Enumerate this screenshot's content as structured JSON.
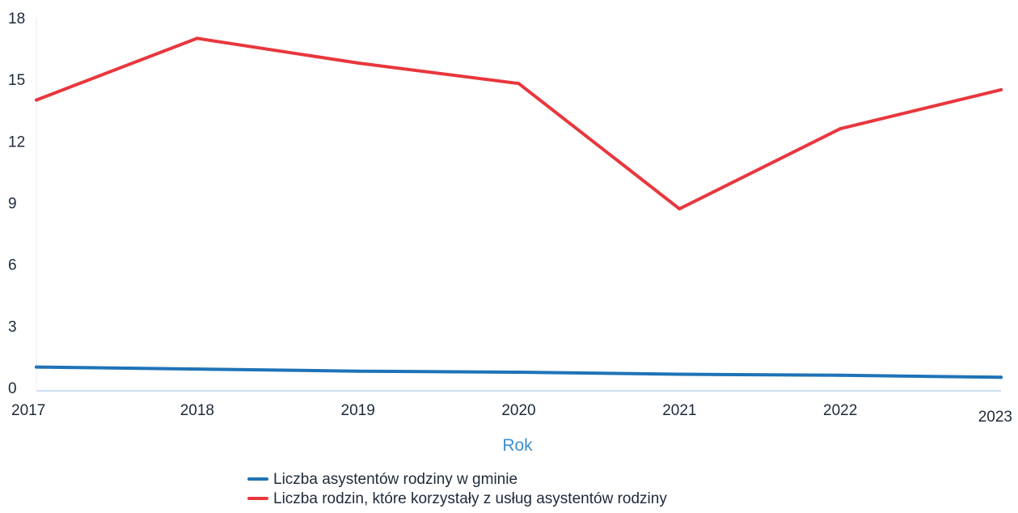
{
  "chart_data": {
    "type": "line",
    "title": "",
    "xlabel": "Rok",
    "ylabel": "",
    "x": [
      "2017",
      "2018",
      "2019",
      "2020",
      "2021",
      "2022",
      "2023"
    ],
    "ylim": [
      0,
      18
    ],
    "yticks": [
      "0",
      "3",
      "6",
      "9",
      "12",
      "15",
      "18"
    ],
    "grid": false,
    "legend_position": "bottom",
    "series": [
      {
        "name": "Liczba asystentów rodziny w gminie",
        "color": "#1f73b7",
        "values": [
          1,
          0.9,
          0.8,
          0.75,
          0.65,
          0.6,
          0.5
        ]
      },
      {
        "name": "Liczba rodzin, które korzystały z usług asystentów rodziny",
        "color": "#e8373d",
        "values": [
          14,
          17,
          15.8,
          14.8,
          8.7,
          12.6,
          14.5
        ]
      }
    ],
    "colors": {
      "axis_title": "#3c8fd0",
      "axis_line": "#b9d3ea",
      "tick_text": "#1e2a3a"
    }
  }
}
